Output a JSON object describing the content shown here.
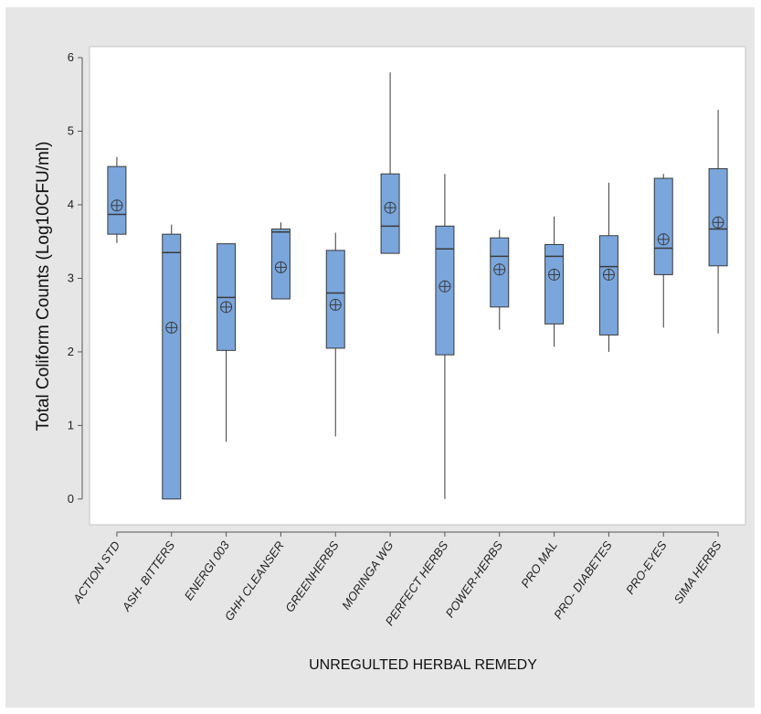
{
  "chart_data": {
    "type": "boxplot",
    "title": "",
    "xlabel": "UNREGULTED HERBAL REMEDY",
    "ylabel": "Total Coliform Counts (Log10CFU/ml)",
    "ylim": [
      -0.35,
      6.15
    ],
    "yticks": [
      0,
      1,
      2,
      3,
      4,
      5,
      6
    ],
    "grid": false,
    "colors": {
      "box_fill": "#7aa6dc",
      "box_stroke": "#3a3a3a",
      "plot_bg": "#ffffff",
      "figure_bg": "#e6e6e6"
    },
    "categories": [
      "ACTION STD",
      "ASH- BITTERS",
      "ENERGI 003",
      "GHH CLEANSER",
      "GREENHERBS",
      "MORINGA WG",
      "PERFECT HERBS",
      "POWER-HERBS",
      "PRO MAL",
      "PRO- DIABETES",
      "PRO-EYES",
      "SIMA HERBS"
    ],
    "boxes": [
      {
        "min": 3.48,
        "q1": 3.6,
        "median": 3.87,
        "q3": 4.52,
        "max": 4.65,
        "mean": 3.99
      },
      {
        "min": 0.0,
        "q1": 0.0,
        "median": 3.35,
        "q3": 3.6,
        "max": 3.73,
        "mean": 2.33
      },
      {
        "min": 0.78,
        "q1": 2.02,
        "median": 2.74,
        "q3": 3.47,
        "max": 3.47,
        "mean": 2.61
      },
      {
        "min": 2.72,
        "q1": 2.72,
        "median": 3.63,
        "q3": 3.67,
        "max": 3.76,
        "mean": 3.15
      },
      {
        "min": 0.85,
        "q1": 2.05,
        "median": 2.8,
        "q3": 3.38,
        "max": 3.62,
        "mean": 2.64
      },
      {
        "min": 3.34,
        "q1": 3.34,
        "median": 3.71,
        "q3": 4.42,
        "max": 5.8,
        "mean": 3.96
      },
      {
        "min": 0.0,
        "q1": 1.96,
        "median": 3.4,
        "q3": 3.71,
        "max": 4.42,
        "mean": 2.89
      },
      {
        "min": 2.3,
        "q1": 2.61,
        "median": 3.3,
        "q3": 3.55,
        "max": 3.66,
        "mean": 3.12
      },
      {
        "min": 2.07,
        "q1": 2.38,
        "median": 3.3,
        "q3": 3.46,
        "max": 3.84,
        "mean": 3.05
      },
      {
        "min": 2.0,
        "q1": 2.23,
        "median": 3.16,
        "q3": 3.58,
        "max": 4.3,
        "mean": 3.05
      },
      {
        "min": 2.33,
        "q1": 3.05,
        "median": 3.41,
        "q3": 4.36,
        "max": 4.42,
        "mean": 3.53
      },
      {
        "min": 2.25,
        "q1": 3.17,
        "median": 3.67,
        "q3": 4.49,
        "max": 5.29,
        "mean": 3.76
      }
    ]
  }
}
